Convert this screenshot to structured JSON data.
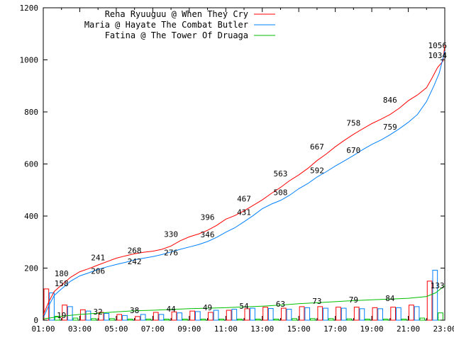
{
  "chart_data": {
    "type": "line",
    "xlim": [
      1,
      23
    ],
    "ylim": [
      0,
      1200
    ],
    "x_ticks": [
      "01:00",
      "03:00",
      "05:00",
      "07:00",
      "09:00",
      "11:00",
      "13:00",
      "15:00",
      "17:00",
      "19:00",
      "21:00",
      "23:00"
    ],
    "y_ticks": [
      0,
      200,
      400,
      600,
      800,
      1000,
      1200
    ],
    "grid": false,
    "legend_placement": "top-left",
    "series": [
      {
        "name": "Rena Ryuuguu @ When They Cry",
        "color": "#ff0000",
        "points": [
          [
            1.0,
            20
          ],
          [
            1.3,
            70
          ],
          [
            1.6,
            110
          ],
          [
            2.0,
            135
          ],
          [
            2.5,
            165
          ],
          [
            3.0,
            186
          ],
          [
            3.5,
            198
          ],
          [
            4.0,
            212
          ],
          [
            4.5,
            225
          ],
          [
            5.0,
            238
          ],
          [
            5.5,
            247
          ],
          [
            6.0,
            255
          ],
          [
            6.5,
            261
          ],
          [
            7.0,
            265
          ],
          [
            7.5,
            272
          ],
          [
            8.0,
            285
          ],
          [
            8.5,
            305
          ],
          [
            9.0,
            320
          ],
          [
            9.5,
            331
          ],
          [
            10.0,
            345
          ],
          [
            10.5,
            364
          ],
          [
            11.0,
            388
          ],
          [
            11.5,
            402
          ],
          [
            12.0,
            420
          ],
          [
            12.5,
            441
          ],
          [
            13.0,
            462
          ],
          [
            13.5,
            487
          ],
          [
            14.0,
            510
          ],
          [
            14.5,
            536
          ],
          [
            15.0,
            558
          ],
          [
            15.5,
            583
          ],
          [
            16.0,
            613
          ],
          [
            16.5,
            638
          ],
          [
            17.0,
            666
          ],
          [
            17.5,
            691
          ],
          [
            18.0,
            714
          ],
          [
            18.5,
            735
          ],
          [
            19.0,
            755
          ],
          [
            19.5,
            772
          ],
          [
            20.0,
            790
          ],
          [
            20.5,
            814
          ],
          [
            21.0,
            843
          ],
          [
            21.5,
            865
          ],
          [
            22.0,
            893
          ],
          [
            22.3,
            930
          ],
          [
            22.6,
            970
          ],
          [
            22.9,
            995
          ],
          [
            23.0,
            1056
          ]
        ],
        "labels": [
          {
            "x": 2.0,
            "y": 180,
            "text": "180"
          },
          {
            "x": 4.0,
            "y": 241,
            "text": "241"
          },
          {
            "x": 6.0,
            "y": 268,
            "text": "268"
          },
          {
            "x": 8.0,
            "y": 330,
            "text": "330"
          },
          {
            "x": 10.0,
            "y": 396,
            "text": "396"
          },
          {
            "x": 12.0,
            "y": 467,
            "text": "467"
          },
          {
            "x": 14.0,
            "y": 563,
            "text": "563"
          },
          {
            "x": 16.0,
            "y": 667,
            "text": "667"
          },
          {
            "x": 18.0,
            "y": 758,
            "text": "758"
          },
          {
            "x": 20.0,
            "y": 846,
            "text": "846"
          },
          {
            "x": 22.6,
            "y": 1056,
            "text": "1056"
          }
        ]
      },
      {
        "name": "Maria @ Hayate The Combat Butler",
        "color": "#0080ff",
        "points": [
          [
            1.0,
            10
          ],
          [
            1.3,
            55
          ],
          [
            1.6,
            95
          ],
          [
            2.0,
            120
          ],
          [
            2.5,
            150
          ],
          [
            3.0,
            170
          ],
          [
            3.5,
            182
          ],
          [
            4.0,
            195
          ],
          [
            4.5,
            205
          ],
          [
            5.0,
            214
          ],
          [
            5.5,
            222
          ],
          [
            6.0,
            232
          ],
          [
            6.5,
            238
          ],
          [
            7.0,
            244
          ],
          [
            7.5,
            252
          ],
          [
            8.0,
            262
          ],
          [
            8.5,
            272
          ],
          [
            9.0,
            281
          ],
          [
            9.5,
            290
          ],
          [
            10.0,
            302
          ],
          [
            10.5,
            318
          ],
          [
            11.0,
            338
          ],
          [
            11.5,
            355
          ],
          [
            12.0,
            378
          ],
          [
            12.5,
            402
          ],
          [
            13.0,
            428
          ],
          [
            13.5,
            446
          ],
          [
            14.0,
            460
          ],
          [
            14.5,
            480
          ],
          [
            15.0,
            505
          ],
          [
            15.5,
            525
          ],
          [
            16.0,
            550
          ],
          [
            16.5,
            570
          ],
          [
            17.0,
            592
          ],
          [
            17.5,
            612
          ],
          [
            18.0,
            633
          ],
          [
            18.5,
            655
          ],
          [
            19.0,
            675
          ],
          [
            19.5,
            692
          ],
          [
            20.0,
            712
          ],
          [
            20.5,
            735
          ],
          [
            21.0,
            760
          ],
          [
            21.5,
            790
          ],
          [
            22.0,
            840
          ],
          [
            22.4,
            900
          ],
          [
            22.7,
            950
          ],
          [
            23.0,
            1034
          ]
        ],
        "labels": [
          {
            "x": 2.0,
            "y": 158,
            "text": "158"
          },
          {
            "x": 4.0,
            "y": 206,
            "text": "206"
          },
          {
            "x": 6.0,
            "y": 242,
            "text": "242"
          },
          {
            "x": 8.0,
            "y": 276,
            "text": "276"
          },
          {
            "x": 10.0,
            "y": 346,
            "text": "346"
          },
          {
            "x": 12.0,
            "y": 431,
            "text": "431"
          },
          {
            "x": 14.0,
            "y": 508,
            "text": "508"
          },
          {
            "x": 16.0,
            "y": 592,
            "text": "592"
          },
          {
            "x": 18.0,
            "y": 670,
            "text": "670"
          },
          {
            "x": 20.0,
            "y": 759,
            "text": "759"
          },
          {
            "x": 22.6,
            "y": 1034,
            "text": "1034"
          }
        ]
      },
      {
        "name": "Fatina @ The Tower Of Druaga",
        "color": "#00c000",
        "points": [
          [
            1.0,
            5
          ],
          [
            2.0,
            15
          ],
          [
            3.0,
            22
          ],
          [
            4.0,
            27
          ],
          [
            5.0,
            32
          ],
          [
            6.0,
            36
          ],
          [
            7.0,
            38
          ],
          [
            8.0,
            41
          ],
          [
            9.0,
            44
          ],
          [
            10.0,
            46
          ],
          [
            11.0,
            48
          ],
          [
            12.0,
            51
          ],
          [
            13.0,
            54
          ],
          [
            14.0,
            58
          ],
          [
            15.0,
            63
          ],
          [
            16.0,
            67
          ],
          [
            17.0,
            71
          ],
          [
            18.0,
            75
          ],
          [
            19.0,
            78
          ],
          [
            20.0,
            81
          ],
          [
            21.0,
            84
          ],
          [
            22.0,
            91
          ],
          [
            22.5,
            105
          ],
          [
            23.0,
            133
          ]
        ],
        "labels": [
          {
            "x": 2.0,
            "y": 19,
            "text": "19"
          },
          {
            "x": 4.0,
            "y": 32,
            "text": "32"
          },
          {
            "x": 6.0,
            "y": 38,
            "text": "38"
          },
          {
            "x": 8.0,
            "y": 44,
            "text": "44"
          },
          {
            "x": 10.0,
            "y": 49,
            "text": "49"
          },
          {
            "x": 12.0,
            "y": 54,
            "text": "54"
          },
          {
            "x": 14.0,
            "y": 63,
            "text": "63"
          },
          {
            "x": 16.0,
            "y": 73,
            "text": "73"
          },
          {
            "x": 18.0,
            "y": 79,
            "text": "79"
          },
          {
            "x": 20.0,
            "y": 84,
            "text": "84"
          },
          {
            "x": 22.6,
            "y": 133,
            "text": "133"
          }
        ]
      }
    ],
    "hourly_bars": {
      "hours": [
        1,
        2,
        3,
        4,
        5,
        6,
        7,
        8,
        9,
        10,
        11,
        12,
        13,
        14,
        15,
        16,
        17,
        18,
        19,
        20,
        21,
        22
      ],
      "series": [
        {
          "name": "Rena Ryuuguu @ When They Cry",
          "color": "#ff0000",
          "values": [
            120,
            58,
            40,
            30,
            22,
            14,
            30,
            32,
            35,
            30,
            38,
            44,
            50,
            46,
            52,
            52,
            50,
            50,
            48,
            50,
            58,
            150
          ]
        },
        {
          "name": "Maria @ Hayate The Combat Butler",
          "color": "#0080ff",
          "values": [
            105,
            52,
            35,
            26,
            18,
            22,
            22,
            28,
            33,
            38,
            42,
            46,
            45,
            42,
            48,
            46,
            46,
            44,
            44,
            48,
            52,
            192
          ]
        },
        {
          "name": "Fatina @ The Tower Of Druaga",
          "color": "#00c000",
          "values": [
            15,
            8,
            6,
            6,
            4,
            4,
            4,
            4,
            4,
            4,
            4,
            4,
            4,
            6,
            6,
            6,
            5,
            4,
            4,
            4,
            8,
            28
          ]
        }
      ]
    }
  }
}
